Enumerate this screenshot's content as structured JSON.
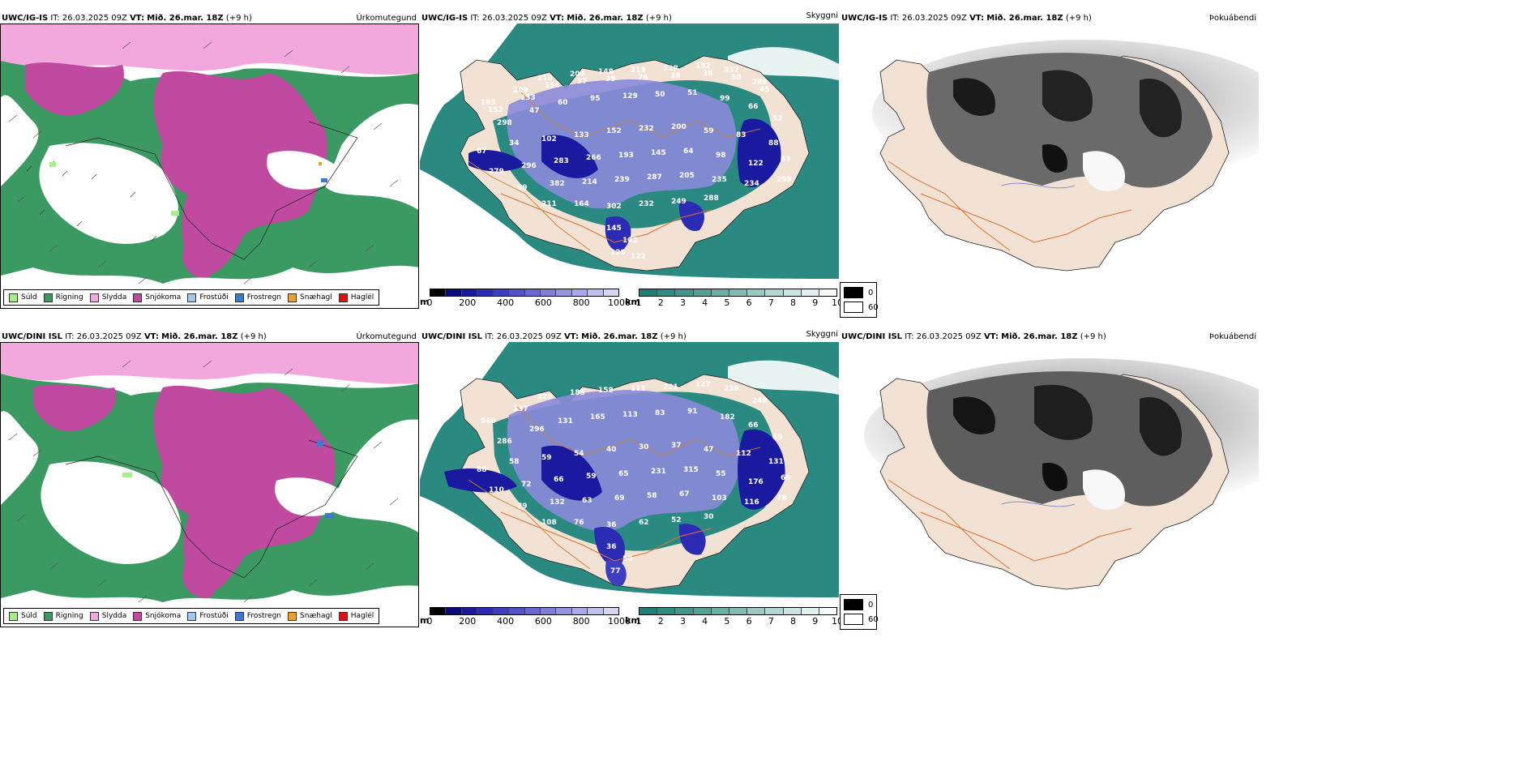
{
  "rows": [
    {
      "precip": {
        "model": "UWC/IG-IS",
        "it_label": "IT:",
        "it_value": "26.03.2025 09Z",
        "vt_label": "VT:",
        "vt_value": "Mið. 26.mar. 18Z",
        "lead": "(+9 h)",
        "right_label": "Úrkomutegund"
      },
      "vis": {
        "model": "UWC/IG-IS",
        "it_label": "IT:",
        "it_value": "26.03.2025 09Z",
        "vt_label": "VT:",
        "vt_value": "Mið. 26.mar. 18Z",
        "lead": "(+9 h)",
        "right_label": "Skyggni",
        "labels": [
          "165",
          "209",
          "210",
          "204",
          "148",
          "219",
          "128",
          "192",
          "337",
          "289",
          "298",
          "47",
          "60",
          "95",
          "129",
          "50",
          "51",
          "99",
          "66",
          "52",
          "67",
          "34",
          "102",
          "133",
          "152",
          "232",
          "200",
          "59",
          "83",
          "88",
          "279",
          "296",
          "283",
          "266",
          "193",
          "145",
          "64",
          "98",
          "122",
          "63",
          "89",
          "382",
          "214",
          "239",
          "287",
          "205",
          "235",
          "234",
          "299",
          "211",
          "164",
          "302",
          "232",
          "249",
          "288",
          "145",
          "102",
          "128",
          "122",
          "152",
          "133",
          "154",
          "37",
          "39",
          "76",
          "38",
          "38",
          "50",
          "45"
        ]
      },
      "fog": {
        "model": "UWC/IG-IS",
        "it_label": "IT:",
        "it_value": "26.03.2025 09Z",
        "vt_label": "VT:",
        "vt_value": "Mið. 26.mar. 18Z",
        "lead": "(+9 h)",
        "right_label": "Þokuábendi"
      }
    },
    {
      "precip": {
        "model": "UWC/DINI ISL",
        "it_label": "IT:",
        "it_value": "26.03.2025 09Z",
        "vt_label": "VT:",
        "vt_value": "Mið. 26.mar. 18Z",
        "lead": "(+9 h)",
        "right_label": "Úrkomutegund"
      },
      "vis": {
        "model": "UWC/DINI ISL",
        "it_label": "IT:",
        "it_value": "26.03.2025 09Z",
        "vt_label": "VT:",
        "vt_value": "Mið. 26.mar. 18Z",
        "lead": "(+9 h)",
        "right_label": "Skyggni",
        "labels": [
          "940",
          "137",
          "226",
          "185",
          "158",
          "111",
          "231",
          "127",
          "238",
          "248",
          "286",
          "296",
          "131",
          "165",
          "113",
          "83",
          "91",
          "182",
          "66",
          "49",
          "88",
          "58",
          "59",
          "54",
          "40",
          "30",
          "37",
          "47",
          "112",
          "131",
          "110",
          "72",
          "66",
          "59",
          "65",
          "231",
          "315",
          "55",
          "176",
          "60",
          "79",
          "132",
          "63",
          "69",
          "58",
          "67",
          "103",
          "116",
          "78",
          "108",
          "76",
          "36",
          "62",
          "52",
          "30",
          "36",
          "50",
          "77"
        ]
      },
      "fog": {
        "model": "UWC/DINI ISL",
        "it_label": "IT:",
        "it_value": "26.03.2025 09Z",
        "vt_label": "VT:",
        "vt_value": "Mið. 26.mar. 18Z",
        "lead": "(+9 h)",
        "right_label": "Þokuábendi"
      }
    }
  ],
  "precip_legend": [
    {
      "label": "Súld",
      "color": "#a6f08a"
    },
    {
      "label": "Rigning",
      "color": "#3a9a62"
    },
    {
      "label": "Slydda",
      "color": "#f2a8dc"
    },
    {
      "label": "Snjókoma",
      "color": "#c04aa0"
    },
    {
      "label": "Frostúði",
      "color": "#9ec8f0"
    },
    {
      "label": "Frostregn",
      "color": "#3a7ad0"
    },
    {
      "label": "Snæhagl",
      "color": "#f0a020"
    },
    {
      "label": "Haglél",
      "color": "#e01010"
    }
  ],
  "height_bar": {
    "unit": "m",
    "ticks": [
      "0",
      "200",
      "400",
      "600",
      "800",
      "1000"
    ],
    "colors": [
      "#000000",
      "#0a0a7a",
      "#1a1aa0",
      "#2b2bb4",
      "#3e3ec2",
      "#5252c8",
      "#6868d0",
      "#7e7ed8",
      "#9494e0",
      "#aaaae6",
      "#c0c0ec",
      "#d6d6f2"
    ]
  },
  "vis_bar": {
    "unit": "km",
    "ticks": [
      "1",
      "2",
      "3",
      "4",
      "5",
      "6",
      "7",
      "8",
      "9",
      "10"
    ],
    "colors": [
      "#1f7f78",
      "#2f8a82",
      "#42948d",
      "#56a098",
      "#6cada5",
      "#84bab3",
      "#9cc8c2",
      "#b4d6d1",
      "#cce4e0",
      "#e2f0ee",
      "#f6fbfa"
    ]
  },
  "fog_legend": [
    {
      "label": "0",
      "color": "#000000"
    },
    {
      "label": "60",
      "color": "#ffffff"
    }
  ],
  "colors": {
    "rain": "#3a9a62",
    "snow": "#c04aa0",
    "sleet": "#f2a8dc",
    "drizzle": "#a6f08a",
    "sea_vis": "#2a8a82",
    "land_fill": "#f2e2d4",
    "road": "#e07030",
    "boundary_orange": "#d08030"
  }
}
